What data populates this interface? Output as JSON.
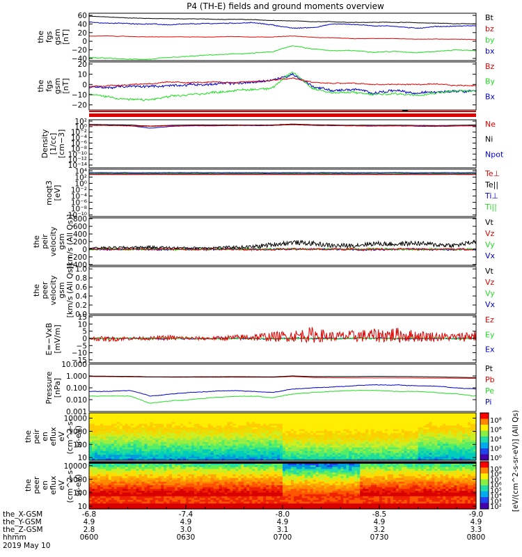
{
  "title": "P4 (TH-E) fields and ground moments overview",
  "colors": {
    "black": "#000000",
    "red": "#e00000",
    "green": "#22dd22",
    "blue": "#0000cc"
  },
  "panels": [
    {
      "ylabel": [
        "the",
        "fgs",
        "gsm",
        "[nT]"
      ],
      "ticks": [
        "60",
        "40",
        "20",
        "0",
        "−20",
        "−40"
      ],
      "tick_values": [
        60,
        40,
        20,
        0,
        -20,
        -40
      ],
      "ylim": [
        -45,
        65
      ],
      "legend": [
        {
          "label": "Bt",
          "color": "#000000"
        },
        {
          "label": "bz",
          "color": "#e00000"
        },
        {
          "label": "by",
          "color": "#22dd22"
        },
        {
          "label": "bx",
          "color": "#0000cc"
        }
      ]
    },
    {
      "ylabel": [
        "the",
        "fgs",
        "gsm",
        "[nT]"
      ],
      "ticks": [
        "20",
        "10",
        "0",
        "−10",
        "−20"
      ],
      "tick_values": [
        20,
        10,
        0,
        -10,
        -20
      ],
      "ylim": [
        -25,
        22
      ],
      "legend": [
        {
          "label": "Bz",
          "color": "#e00000"
        },
        {
          "label": "By",
          "color": "#22dd22"
        },
        {
          "label": "Bx",
          "color": "#0000cc"
        }
      ]
    },
    {
      "ylabel": [
        "Density",
        "[1/cc]",
        "[cm−3]"
      ],
      "ticks": [
        "10²",
        "10⁰",
        "10⁻²",
        "10⁻⁴",
        "10⁻⁶",
        "10⁻⁸",
        "10⁻¹⁰",
        "10⁻¹²",
        "10⁻¹⁴"
      ],
      "tick_values": [
        2,
        0,
        -2,
        -4,
        -6,
        -8,
        -10,
        -12,
        -14
      ],
      "ylim": [
        -15,
        2.5
      ],
      "legend": [
        {
          "label": "Ne",
          "color": "#e00000"
        },
        {
          "label": "Ni",
          "color": "#000000"
        },
        {
          "label": "Npot",
          "color": "#0000cc"
        }
      ]
    },
    {
      "ylabel": [
        "moqt3",
        "[eV]"
      ],
      "ticks": [
        "10⁴",
        "10²",
        "10⁰",
        "10⁻²",
        "10⁻⁴",
        "10⁻⁶",
        "10⁻⁸",
        "10⁻¹⁰"
      ],
      "tick_values": [
        4,
        2,
        0,
        -2,
        -4,
        -6,
        -8,
        -10
      ],
      "ylim": [
        -10.5,
        4.5
      ],
      "legend": [
        {
          "label": "Te⊥",
          "color": "#e00000"
        },
        {
          "label": "Te||",
          "color": "#000000"
        },
        {
          "label": "Ti⊥",
          "color": "#0000cc"
        },
        {
          "label": "Ti||",
          "color": "#22dd22"
        }
      ]
    },
    {
      "ylabel": [
        "the",
        "peir",
        "velocity",
        "gsm",
        "[km/s (All Qs)]"
      ],
      "ticks": [
        "800",
        "600",
        "400",
        "200",
        "0",
        "−200",
        "−400"
      ],
      "tick_values": [
        800,
        600,
        400,
        200,
        0,
        -200,
        -400
      ],
      "ylim": [
        -420,
        820
      ],
      "legend": [
        {
          "label": "Vt",
          "color": "#000000"
        },
        {
          "label": "Vz",
          "color": "#e00000"
        },
        {
          "label": "Vy",
          "color": "#22dd22"
        },
        {
          "label": "Vx",
          "color": "#0000cc"
        }
      ]
    },
    {
      "ylabel": [
        "the",
        "peer",
        "velocity",
        "gsm",
        "[km/s (All Qs)]"
      ],
      "ticks": [
        "1.0",
        "0.8",
        "0.6",
        "0.4",
        "0.2",
        "0.0"
      ],
      "tick_values": [
        1.0,
        0.8,
        0.6,
        0.4,
        0.2,
        0.0
      ],
      "ylim": [
        0,
        1.05
      ],
      "legend": [
        {
          "label": "Vt",
          "color": "#000000"
        },
        {
          "label": "Vz",
          "color": "#e00000"
        },
        {
          "label": "Vy",
          "color": "#22dd22"
        },
        {
          "label": "Vx",
          "color": "#0000cc"
        }
      ]
    },
    {
      "ylabel": [
        "E=−VxB",
        "[mV/m]"
      ],
      "ticks": [
        "15",
        "10",
        "5",
        "0",
        "−5",
        "−10",
        "−15"
      ],
      "tick_values": [
        15,
        10,
        5,
        0,
        -5,
        -10,
        -15
      ],
      "ylim": [
        -17,
        16
      ],
      "legend": [
        {
          "label": "Ez",
          "color": "#e00000"
        },
        {
          "label": "Ey",
          "color": "#22dd22"
        },
        {
          "label": "Ex",
          "color": "#0000cc"
        }
      ]
    },
    {
      "ylabel": [
        "Pressure",
        "[nPa]"
      ],
      "ticks": [
        "10.000",
        "1.000",
        "0.100",
        "0.010",
        "0.001"
      ],
      "tick_values": [
        1,
        0,
        -1,
        -2,
        -3
      ],
      "ylim": [
        -3,
        1
      ],
      "legend": [
        {
          "label": "Pt",
          "color": "#000000"
        },
        {
          "label": "Pb",
          "color": "#e00000"
        },
        {
          "label": "Pe",
          "color": "#22dd22"
        },
        {
          "label": "Pi",
          "color": "#0000cc"
        }
      ]
    },
    {
      "ylabel": [
        "the",
        "peir",
        "en",
        "eflux",
        "eV",
        "(cm^2-s-",
        "sr-eV)"
      ],
      "ticks": [
        "10000",
        "1000",
        "100",
        "10"
      ],
      "tick_values": [
        4,
        3,
        2,
        1
      ],
      "ylim": [
        0.8,
        4.4
      ],
      "colorbar_ticks": [
        "10⁸",
        "10⁶",
        "10⁴",
        "10²",
        "10⁰"
      ]
    },
    {
      "ylabel": [
        "the",
        "peer",
        "en",
        "eflux",
        "eV",
        "(cm^2-s-",
        "sr-eV)"
      ],
      "ticks": [
        "10000",
        "1000",
        "100",
        "10"
      ],
      "tick_values": [
        4,
        3,
        2,
        1
      ],
      "ylim": [
        0.8,
        4.3
      ],
      "colorbar_ticks": [
        "10⁹",
        "10⁸",
        "10⁷",
        "10⁶",
        "10⁵",
        "10⁴",
        "10³",
        "10²"
      ]
    }
  ],
  "colorbar_label": "[eV/(cm^2-s-sr-eV)] (All Qs)",
  "xaxis": {
    "row_labels": [
      "the_X-GSM",
      "the_Y-GSM",
      "the_Z-GSM",
      "hhmm"
    ],
    "date": "2019 May 10",
    "ticks": [
      {
        "x": "-6.8",
        "y": "4.9",
        "z": "2.8",
        "t": "0600"
      },
      {
        "x": "-7.4",
        "y": "4.9",
        "z": "3.0",
        "t": "0630"
      },
      {
        "x": "-8.0",
        "y": "4.9",
        "z": "3.1",
        "t": "0700"
      },
      {
        "x": "-8.5",
        "y": "4.9",
        "z": "3.2",
        "t": "0730"
      },
      {
        "x": "-9.0",
        "y": "4.9",
        "z": "3.3",
        "t": "0800"
      }
    ]
  },
  "chart_data": {
    "type": "line",
    "title": "P4 (TH-E) fields and ground moments overview",
    "x_range": [
      "0600",
      "0800"
    ],
    "date": "2019 May 10",
    "series_approx": {
      "Bt": [
        58,
        56,
        54,
        53,
        52,
        52,
        51,
        51,
        50,
        48,
        47,
        45,
        45,
        44,
        44,
        44,
        43,
        42,
        41,
        40
      ],
      "bx": [
        44,
        42,
        41,
        40,
        38,
        40,
        41,
        42,
        43,
        38,
        30,
        32,
        40,
        39,
        36,
        35,
        30,
        34,
        35,
        36
      ],
      "by": [
        -38,
        -40,
        -42,
        -42,
        -38,
        -35,
        -32,
        -30,
        -28,
        -25,
        -10,
        -18,
        -22,
        -22,
        -25,
        -24,
        -26,
        -24,
        -20,
        -22
      ],
      "bz": [
        12,
        12,
        11,
        10,
        10,
        10,
        10,
        11,
        10,
        10,
        12,
        9,
        8,
        6,
        6,
        6,
        5,
        5,
        5,
        4
      ],
      "Vt_peir": [
        30,
        40,
        45,
        50,
        40,
        35,
        40,
        50,
        60,
        120,
        180,
        150,
        90,
        100,
        150,
        130,
        160,
        120,
        100,
        200
      ],
      "Ez": [
        0,
        -1,
        0,
        0,
        1,
        0,
        0,
        1,
        2,
        3,
        4,
        6,
        3,
        4,
        5,
        6,
        4,
        3,
        2,
        5
      ],
      "Pb": [
        0.9,
        0.88,
        0.85,
        0.82,
        0.8,
        0.8,
        0.8,
        0.8,
        0.79,
        0.78,
        0.9,
        0.75,
        0.72,
        0.7,
        0.7,
        0.7,
        0.68,
        0.66,
        0.65,
        0.63
      ],
      "Pi": [
        0.05,
        0.05,
        0.06,
        0.02,
        0.03,
        0.04,
        0.05,
        0.06,
        0.05,
        0.04,
        0.08,
        0.1,
        0.12,
        0.15,
        0.18,
        0.17,
        0.15,
        0.14,
        0.1,
        0.08
      ],
      "Pe": [
        0.02,
        0.02,
        0.02,
        0.005,
        0.008,
        0.01,
        0.015,
        0.018,
        0.02,
        0.015,
        0.03,
        0.04,
        0.05,
        0.06,
        0.06,
        0.05,
        0.05,
        0.04,
        0.03,
        0.02
      ]
    }
  }
}
